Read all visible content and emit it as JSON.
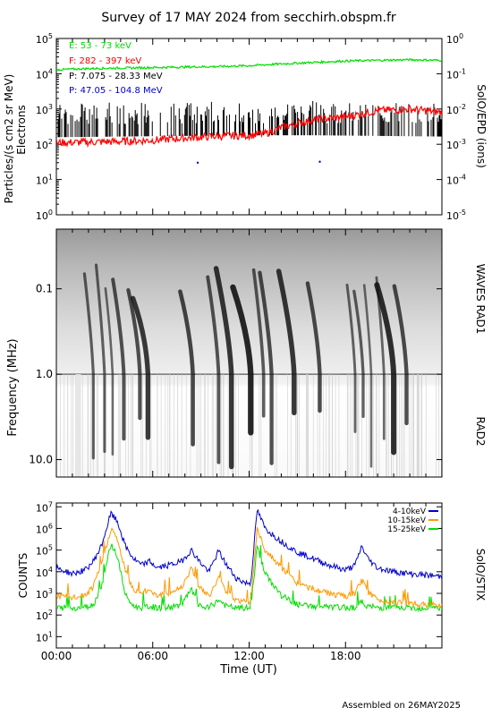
{
  "title": "Survey of 17 MAY 2024 from secchirh.obspm.fr",
  "footer": "Assembled on 26MAY2025",
  "colors": {
    "electron_low": "#00dd00",
    "electron_high": "#ff0000",
    "proton_low": "#000000",
    "proton_high": "#0000cc",
    "stix_4_10": "#0000cc",
    "stix_10_15": "#ff9900",
    "stix_15_25": "#00dd00"
  },
  "chart_data": [
    {
      "type": "line",
      "title": "",
      "ylabel": "Particles/(s cm2 sr MeV)",
      "ylabel2": "Electrons",
      "right_label": "SolO/EPD (ions)",
      "y_scale": "log",
      "ylim": [
        1,
        100000
      ],
      "y_ticks": [
        "10^0",
        "10^1",
        "10^2",
        "10^3",
        "10^4",
        "10^5"
      ],
      "right_ylim": [
        1e-05,
        1
      ],
      "right_ticks": [
        "10^-5",
        "10^-4",
        "10^-3",
        "10^-2",
        "10^-1",
        "10^0"
      ],
      "xlim_hours": [
        0,
        24
      ],
      "series": [
        {
          "name": "E: 53 - 73 keV",
          "color": "#00dd00",
          "x": [
            0,
            2,
            4,
            6,
            8,
            10,
            12,
            14,
            16,
            18,
            20,
            22,
            24
          ],
          "values": [
            13000,
            14000,
            14500,
            15000,
            15500,
            16000,
            17000,
            19000,
            21000,
            23000,
            24000,
            25000,
            24000
          ]
        },
        {
          "name": "F: 282 - 397 keV",
          "color": "#ff0000",
          "x": [
            0,
            2,
            4,
            6,
            8,
            10,
            12,
            13,
            14,
            16,
            18,
            20,
            22,
            24
          ],
          "values": [
            110,
            115,
            120,
            130,
            150,
            170,
            180,
            200,
            300,
            500,
            600,
            900,
            1000,
            800
          ]
        },
        {
          "name": "P: 7.075 - 28.33 MeV",
          "color": "#000000",
          "x": [
            0,
            4,
            8,
            12,
            16,
            20,
            24
          ],
          "values": [
            220,
            230,
            240,
            250,
            250,
            240,
            230
          ]
        },
        {
          "name": "P: 47.05 - 104.8 MeV",
          "color": "#0000cc",
          "x": [
            8.8,
            16.4
          ],
          "values": [
            30,
            32
          ]
        }
      ]
    },
    {
      "type": "heatmap",
      "ylabel": "Frequency (MHz)",
      "right_labels": [
        "WAVES RAD1",
        "RAD2"
      ],
      "y_scale": "log",
      "ylim": [
        0.02,
        16
      ],
      "y_ticks": [
        "0.1",
        "1.0",
        "10.0"
      ],
      "xlim_hours": [
        0,
        24
      ],
      "bursts_hours": [
        2.3,
        3.0,
        3.5,
        4.2,
        5.2,
        5.7,
        8.5,
        10.1,
        10.9,
        12.1,
        12.9,
        13.4,
        14.8,
        16.4,
        18.6,
        19.1,
        19.6,
        20.4,
        21.0,
        21.8
      ]
    },
    {
      "type": "line",
      "ylabel": "COUNTS",
      "right_label": "SolO/STIX",
      "xlabel": "Time (UT)",
      "x_ticks": [
        "00:00",
        "06:00",
        "12:00",
        "18:00"
      ],
      "y_scale": "log",
      "ylim": [
        3,
        15000000
      ],
      "y_ticks": [
        "10^1",
        "10^2",
        "10^3",
        "10^4",
        "10^5",
        "10^6",
        "10^7"
      ],
      "xlim_hours": [
        0,
        24
      ],
      "series": [
        {
          "name": "4-10keV",
          "color": "#0000cc",
          "x": [
            0,
            1,
            1.8,
            2.3,
            2.8,
            3.4,
            3.8,
            4.3,
            4.8,
            5.3,
            5.8,
            6.3,
            7,
            7.8,
            8.4,
            8.9,
            9.5,
            10.1,
            10.6,
            11.2,
            11.8,
            12.1,
            12.5,
            13,
            14,
            15,
            16,
            17,
            18,
            18.6,
            19,
            19.4,
            20,
            21,
            22,
            23,
            24
          ],
          "values": [
            15000,
            8000,
            12000,
            30000,
            150000,
            5000000,
            2000000,
            150000,
            40000,
            20000,
            30000,
            15000,
            20000,
            30000,
            100000,
            30000,
            10000,
            90000,
            20000,
            5000,
            3000,
            3000,
            7000000,
            1000000,
            250000,
            80000,
            40000,
            20000,
            12000,
            20000,
            150000,
            40000,
            15000,
            10000,
            8000,
            7000,
            6000
          ]
        },
        {
          "name": "10-15keV",
          "color": "#ff9900",
          "x": [
            0,
            1,
            1.8,
            2.3,
            2.8,
            3.4,
            3.8,
            4.3,
            4.8,
            5.3,
            5.8,
            6.3,
            7,
            7.8,
            8.4,
            8.9,
            9.5,
            10.1,
            10.6,
            11.2,
            11.8,
            12.1,
            12.5,
            13,
            14,
            15,
            16,
            17,
            18,
            18.6,
            19,
            19.4,
            20,
            21,
            22,
            23,
            24
          ],
          "values": [
            800,
            600,
            800,
            2000,
            20000,
            1000000,
            300000,
            10000,
            1500,
            1000,
            1500,
            800,
            1000,
            2000,
            15000,
            2000,
            700,
            5000,
            1200,
            500,
            400,
            400,
            1000000,
            100000,
            15000,
            3000,
            1500,
            1000,
            700,
            1000,
            4000,
            1200,
            500,
            400,
            350,
            300,
            300
          ]
        },
        {
          "name": "15-25keV",
          "color": "#00dd00",
          "x": [
            0,
            1,
            1.8,
            2.3,
            2.8,
            3.4,
            3.8,
            4.3,
            4.8,
            5.3,
            5.8,
            6.3,
            7,
            7.8,
            8.4,
            8.9,
            9.5,
            10.1,
            10.6,
            11.2,
            11.8,
            12.1,
            12.5,
            13,
            14,
            15,
            16,
            17,
            18,
            18.6,
            19,
            19.4,
            20,
            21,
            22,
            23,
            24
          ],
          "values": [
            220,
            210,
            230,
            300,
            2000,
            200000,
            50000,
            800,
            250,
            220,
            250,
            210,
            220,
            300,
            1500,
            250,
            210,
            500,
            250,
            210,
            210,
            210,
            150000,
            8000,
            800,
            300,
            250,
            230,
            220,
            230,
            400,
            250,
            220,
            210,
            210,
            210,
            210
          ]
        }
      ]
    }
  ]
}
